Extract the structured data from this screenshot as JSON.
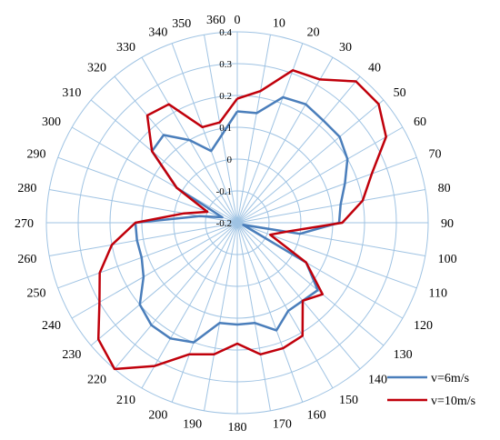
{
  "chart_data": {
    "type": "radar",
    "angle_labels": [
      "0",
      "10",
      "20",
      "30",
      "40",
      "50",
      "60",
      "70",
      "80",
      "90",
      "100",
      "110",
      "120",
      "130",
      "140",
      "150",
      "160",
      "170",
      "180",
      "190",
      "200",
      "210",
      "220",
      "230",
      "240",
      "250",
      "260",
      "270",
      "280",
      "290",
      "300",
      "310",
      "320",
      "330",
      "340",
      "350",
      "360"
    ],
    "radial_ticks": [
      "-0.2",
      "-0.1",
      "0",
      "0.1",
      "0.2",
      "0.3",
      "0.4"
    ],
    "rlim": [
      -0.2,
      0.4
    ],
    "grid": true,
    "legend_position": "bottom-right",
    "series": [
      {
        "name": "v=6m/s",
        "color": "#4a7ebb",
        "values": [
          0.15,
          0.15,
          0.22,
          0.23,
          0.22,
          0.22,
          0.2,
          0.16,
          0.13,
          0.12,
          0.0,
          -0.18,
          0.05,
          0.13,
          0.12,
          0.12,
          0.16,
          0.12,
          0.12,
          0.12,
          0.2,
          0.22,
          0.22,
          0.2,
          0.14,
          0.12,
          0.12,
          0.12,
          -0.08,
          -0.15,
          0.02,
          0.15,
          0.16,
          0.1,
          0.04,
          0.08,
          0.15
        ]
      },
      {
        "name": "v=10m/s",
        "color": "#c0000b",
        "values": [
          0.19,
          0.22,
          0.31,
          0.32,
          0.38,
          0.38,
          0.34,
          0.25,
          0.2,
          0.13,
          -0.04,
          -0.09,
          0.05,
          0.15,
          0.12,
          0.21,
          0.22,
          0.22,
          0.18,
          0.22,
          0.24,
          0.32,
          0.4,
          0.37,
          0.3,
          0.26,
          0.2,
          0.12,
          -0.03,
          -0.1,
          0.02,
          0.15,
          0.24,
          0.23,
          0.12,
          0.12,
          0.19
        ]
      }
    ]
  }
}
